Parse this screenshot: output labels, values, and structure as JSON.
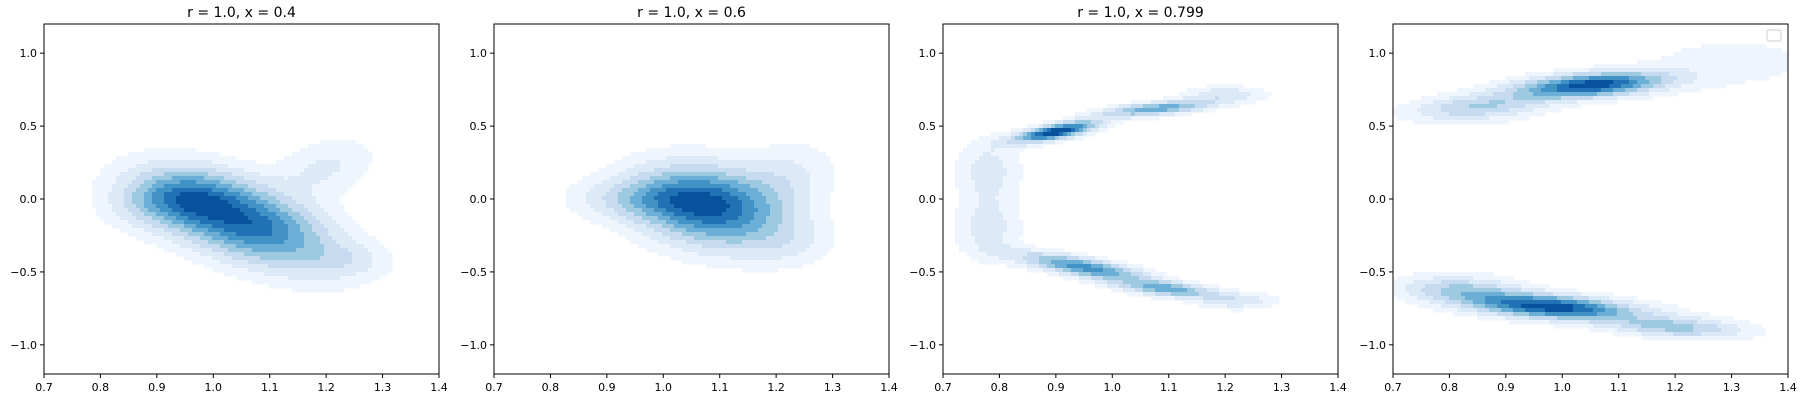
{
  "chart_data": [
    {
      "type": "contour",
      "title": "r = 1.0, x = 0.4",
      "xlim": [
        0.7,
        1.4
      ],
      "ylim": [
        -1.2,
        1.2
      ],
      "xticks": [
        "0.7",
        "0.8",
        "0.9",
        "1.0",
        "1.1",
        "1.2",
        "1.3",
        "1.4"
      ],
      "yticks": [
        "-1.0",
        "-0.5",
        "0.0",
        "0.5",
        "1.0"
      ],
      "colormap": "Blues",
      "levels": [
        0.08,
        0.18,
        0.3,
        0.42,
        0.54,
        0.66,
        0.78,
        0.9
      ],
      "components": [
        {
          "x": 1.05,
          "y": -0.15,
          "sx": 0.11,
          "sy": 0.22,
          "rho": -0.55,
          "w": 1.0
        },
        {
          "x": 0.93,
          "y": 0.0,
          "sx": 0.07,
          "sy": 0.13,
          "rho": 0.1,
          "w": 0.45
        },
        {
          "x": 1.2,
          "y": 0.22,
          "sx": 0.06,
          "sy": 0.14,
          "rho": 0.3,
          "w": 0.22
        },
        {
          "x": 1.24,
          "y": -0.42,
          "sx": 0.05,
          "sy": 0.08,
          "rho": 0.0,
          "w": 0.15
        }
      ],
      "legend": false
    },
    {
      "type": "contour",
      "title": "r = 1.0, x = 0.6",
      "xlim": [
        0.7,
        1.4
      ],
      "ylim": [
        -1.2,
        1.2
      ],
      "xticks": [
        "0.7",
        "0.8",
        "0.9",
        "1.0",
        "1.1",
        "1.2",
        "1.3",
        "1.4"
      ],
      "yticks": [
        "-1.0",
        "-0.5",
        "0.0",
        "0.5",
        "1.0"
      ],
      "colormap": "Blues",
      "levels": [
        0.08,
        0.18,
        0.3,
        0.42,
        0.54,
        0.66,
        0.78,
        0.9
      ],
      "components": [
        {
          "x": 1.08,
          "y": -0.05,
          "sx": 0.09,
          "sy": 0.19,
          "rho": -0.2,
          "w": 1.0
        },
        {
          "x": 0.96,
          "y": 0.0,
          "sx": 0.08,
          "sy": 0.1,
          "rho": 0.0,
          "w": 0.3
        },
        {
          "x": 1.22,
          "y": 0.15,
          "sx": 0.06,
          "sy": 0.17,
          "rho": 0.2,
          "w": 0.2
        },
        {
          "x": 1.22,
          "y": -0.3,
          "sx": 0.06,
          "sy": 0.12,
          "rho": 0.0,
          "w": 0.15
        }
      ],
      "legend": false
    },
    {
      "type": "contour",
      "title": "r = 1.0, x = 0.799",
      "xlim": [
        0.7,
        1.4
      ],
      "ylim": [
        -1.2,
        1.2
      ],
      "xticks": [
        "0.7",
        "0.8",
        "0.9",
        "1.0",
        "1.1",
        "1.2",
        "1.3",
        "1.4"
      ],
      "yticks": [
        "-1.0",
        "-0.5",
        "0.0",
        "0.5",
        "1.0"
      ],
      "colormap": "Blues",
      "levels": [
        0.08,
        0.18,
        0.3,
        0.42,
        0.54,
        0.66,
        0.78,
        0.9
      ],
      "components": [
        {
          "x": 0.9,
          "y": 0.46,
          "sx": 0.05,
          "sy": 0.05,
          "rho": 0.7,
          "w": 1.0
        },
        {
          "x": 1.08,
          "y": 0.62,
          "sx": 0.07,
          "sy": 0.04,
          "rho": 0.6,
          "w": 0.6
        },
        {
          "x": 1.2,
          "y": 0.72,
          "sx": 0.05,
          "sy": 0.04,
          "rho": 0.0,
          "w": 0.25
        },
        {
          "x": 0.95,
          "y": -0.47,
          "sx": 0.08,
          "sy": 0.07,
          "rho": -0.75,
          "w": 0.7
        },
        {
          "x": 1.1,
          "y": -0.62,
          "sx": 0.06,
          "sy": 0.04,
          "rho": -0.5,
          "w": 0.55
        },
        {
          "x": 1.22,
          "y": -0.7,
          "sx": 0.05,
          "sy": 0.04,
          "rho": 0.0,
          "w": 0.25
        },
        {
          "x": 0.78,
          "y": 0.0,
          "sx": 0.04,
          "sy": 0.3,
          "rho": 0.0,
          "w": 0.17
        },
        {
          "x": 0.78,
          "y": 0.22,
          "sx": 0.04,
          "sy": 0.1,
          "rho": 0.0,
          "w": 0.1
        },
        {
          "x": 0.78,
          "y": -0.22,
          "sx": 0.04,
          "sy": 0.1,
          "rho": 0.0,
          "w": 0.1
        }
      ],
      "legend": false
    },
    {
      "type": "contour",
      "title": "",
      "xlim": [
        0.7,
        1.4
      ],
      "ylim": [
        -1.2,
        1.2
      ],
      "xticks": [
        "0.7",
        "0.8",
        "0.9",
        "1.0",
        "1.1",
        "1.2",
        "1.3",
        "1.4"
      ],
      "yticks": [
        "-1.0",
        "-0.5",
        "0.0",
        "0.5",
        "1.0"
      ],
      "colormap": "Blues",
      "levels": [
        0.08,
        0.18,
        0.3,
        0.42,
        0.54,
        0.66,
        0.78,
        0.9
      ],
      "components": [
        {
          "x": 1.05,
          "y": 0.78,
          "sx": 0.09,
          "sy": 0.06,
          "rho": 0.4,
          "w": 1.0
        },
        {
          "x": 0.85,
          "y": 0.63,
          "sx": 0.08,
          "sy": 0.06,
          "rho": 0.3,
          "w": 0.4
        },
        {
          "x": 1.3,
          "y": 0.95,
          "sx": 0.12,
          "sy": 0.12,
          "rho": 0.0,
          "w": 0.1
        },
        {
          "x": 0.98,
          "y": -0.74,
          "sx": 0.1,
          "sy": 0.06,
          "rho": -0.4,
          "w": 1.0
        },
        {
          "x": 1.2,
          "y": -0.88,
          "sx": 0.08,
          "sy": 0.05,
          "rho": -0.3,
          "w": 0.45
        },
        {
          "x": 0.82,
          "y": -0.62,
          "sx": 0.07,
          "sy": 0.06,
          "rho": -0.2,
          "w": 0.4
        },
        {
          "x": 0.85,
          "y": 0.0,
          "sx": 0.12,
          "sy": 0.5,
          "rho": 0.0,
          "w": 0.07
        },
        {
          "x": 1.3,
          "y": 0.0,
          "sx": 0.15,
          "sy": 0.7,
          "rho": 0.0,
          "w": 0.06
        }
      ],
      "legend": true
    }
  ]
}
